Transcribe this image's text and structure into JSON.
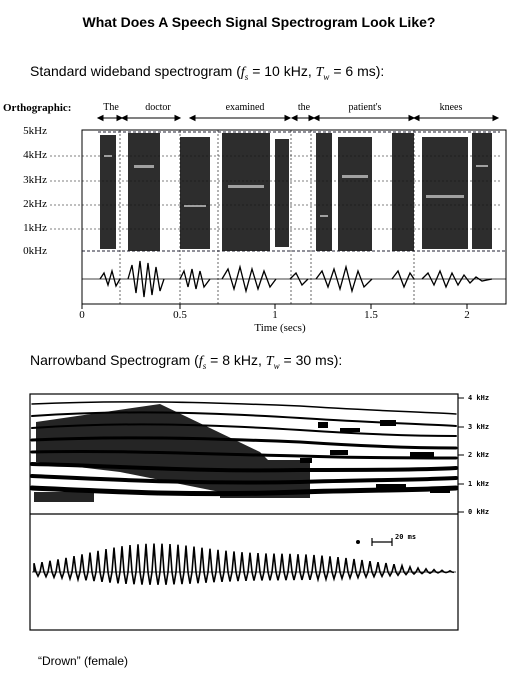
{
  "title": "What Does A Speech Signal Spectrogram Look Like?",
  "wideband": {
    "caption_prefix": "Standard wideband spectrogram (",
    "fs_symbol": "f",
    "fs_sub": "s",
    "fs_value": " = 10 kHz, ",
    "tw_symbol": "T",
    "tw_sub": "w",
    "tw_value": " = 6 ms",
    "caption_suffix": "):",
    "orthographic_label": "Orthographic:",
    "words": [
      "The",
      "doctor",
      "examined",
      "the",
      "patient's",
      "knees"
    ],
    "freq_labels": [
      "5kHz",
      "4kHz",
      "3kHz",
      "2kHz",
      "1kHz",
      "0kHz"
    ],
    "time_ticks": [
      "0",
      "0.5",
      "1",
      "1.5",
      "2"
    ],
    "time_axis_label": "Time (secs)"
  },
  "narrowband": {
    "caption_prefix": "Narrowband Spectrogram (",
    "fs_symbol": "f",
    "fs_sub": "s",
    "fs_value": " = 8 kHz, ",
    "tw_symbol": "T",
    "tw_sub": "w",
    "tw_value": " = 30 ms",
    "caption_suffix": "):",
    "freq_labels": [
      "4 kHz",
      "3 kHz",
      "2 kHz",
      "1 kHz",
      "0 kHz"
    ],
    "scale_label": "20 ms",
    "word_caption": "“Drown” (female)"
  }
}
